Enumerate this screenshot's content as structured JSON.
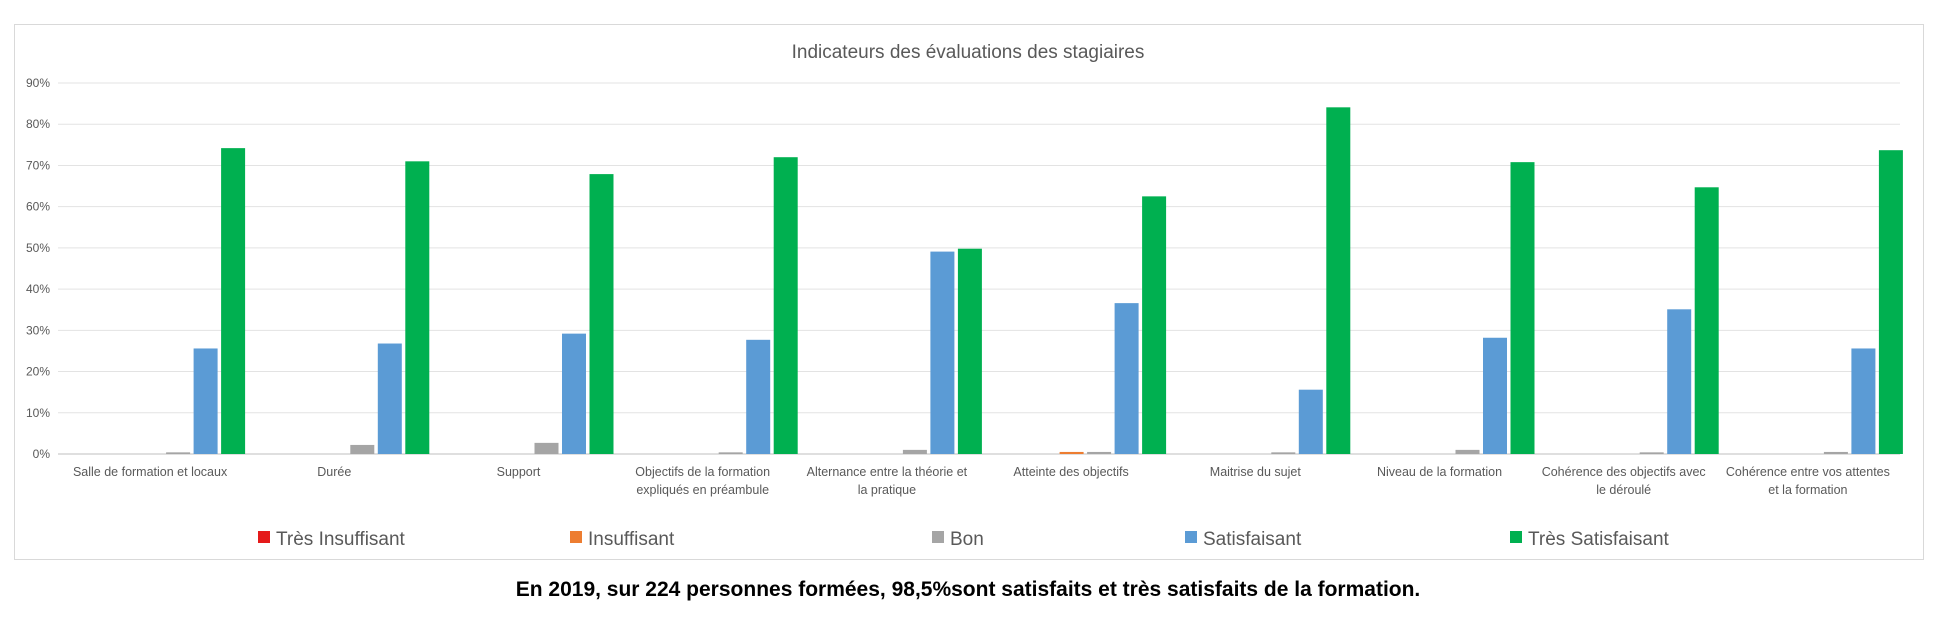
{
  "chart_data": {
    "type": "bar",
    "title": "Indicateurs des évaluations des stagiaires",
    "xlabel": "",
    "ylabel": "",
    "ylim": [
      0,
      90
    ],
    "y_ticks": [
      "0%",
      "10%",
      "20%",
      "30%",
      "40%",
      "50%",
      "60%",
      "70%",
      "80%",
      "90%"
    ],
    "grid": true,
    "legend_position": "bottom",
    "categories": [
      [
        "Salle de formation et locaux"
      ],
      [
        "Durée"
      ],
      [
        "Support"
      ],
      [
        "Objectifs de la formation",
        "expliqués en préambule"
      ],
      [
        "Alternance entre la théorie et",
        "la pratique"
      ],
      [
        "Atteinte des objectifs"
      ],
      [
        "Maitrise du sujet"
      ],
      [
        "Niveau de la formation"
      ],
      [
        "Cohérence des objectifs avec",
        "le déroulé"
      ],
      [
        "Cohérence entre vos attentes",
        "et la formation"
      ]
    ],
    "series": [
      {
        "name": "Très Insuffisant",
        "color": "#e51a1a",
        "values": [
          0,
          0,
          0,
          0,
          0,
          0,
          0,
          0,
          0,
          0
        ]
      },
      {
        "name": "Insuffisant",
        "color": "#ed7d31",
        "values": [
          0,
          0,
          0,
          0,
          0,
          0.5,
          0,
          0,
          0,
          0
        ]
      },
      {
        "name": "Bon",
        "color": "#a5a5a5",
        "values": [
          0.4,
          2.2,
          2.7,
          0.4,
          1.0,
          0.5,
          0.4,
          1.0,
          0.4,
          0.5
        ]
      },
      {
        "name": "Satisfaisant",
        "color": "#5b9bd5",
        "values": [
          25.6,
          26.8,
          29.2,
          27.7,
          49.1,
          36.6,
          15.6,
          28.2,
          35.1,
          25.6
        ]
      },
      {
        "name": "Très Satisfaisant",
        "color": "#00b050",
        "values": [
          74.2,
          71.0,
          67.9,
          72.0,
          49.8,
          62.5,
          84.1,
          70.8,
          64.7,
          73.7
        ]
      }
    ]
  },
  "caption": "En 2019, sur 224 personnes formées,  98,5%sont satisfaits et très satisfaits de la formation."
}
